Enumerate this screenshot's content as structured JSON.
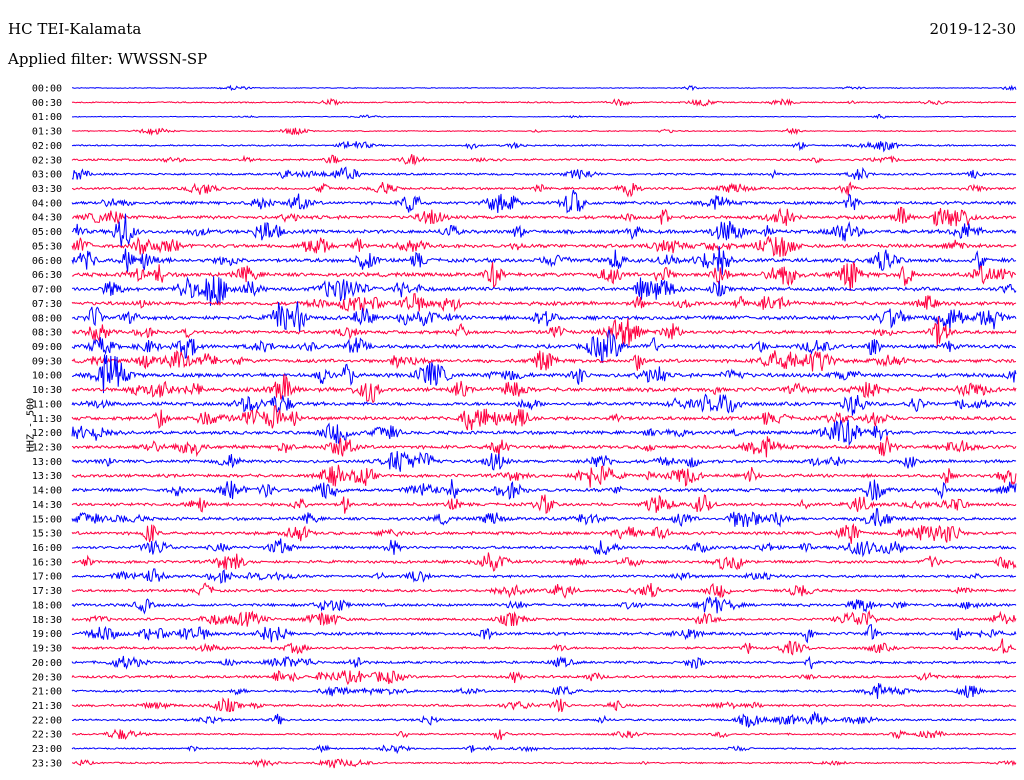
{
  "header": {
    "station": "HC TEI-Kalamata",
    "date": "2019-12-30",
    "filter": "Applied filter: WWSSN-SP"
  },
  "chart_data": {
    "type": "line",
    "ylabel": "HHZ - 500",
    "row_labels": [
      "00:00",
      "00:30",
      "01:00",
      "01:30",
      "02:00",
      "02:30",
      "03:00",
      "03:30",
      "04:00",
      "04:30",
      "05:00",
      "05:30",
      "06:00",
      "06:30",
      "07:00",
      "07:30",
      "08:00",
      "08:30",
      "09:00",
      "09:30",
      "10:00",
      "10:30",
      "11:00",
      "11:30",
      "12:00",
      "12:30",
      "13:00",
      "13:30",
      "14:00",
      "14:30",
      "15:00",
      "15:30",
      "16:00",
      "16:30",
      "17:00",
      "17:30",
      "18:00",
      "18:30",
      "19:00",
      "19:30",
      "20:00",
      "20:30",
      "21:00",
      "21:30",
      "22:00",
      "22:30",
      "23:00",
      "23:30"
    ],
    "amplitude_level": [
      0.3,
      0.5,
      0.3,
      0.4,
      0.6,
      0.8,
      0.8,
      0.9,
      1.2,
      1.3,
      1.4,
      1.4,
      1.5,
      1.5,
      1.4,
      1.4,
      1.5,
      1.3,
      1.4,
      1.4,
      1.5,
      1.5,
      1.4,
      1.4,
      1.3,
      1.3,
      1.2,
      1.2,
      1.3,
      1.2,
      1.2,
      1.2,
      1.1,
      1.1,
      1.0,
      1.0,
      1.1,
      1.0,
      1.1,
      0.9,
      1.0,
      1.0,
      0.9,
      0.9,
      0.8,
      0.7,
      0.6,
      0.6
    ],
    "colors": [
      "#0000ff",
      "#ff0040"
    ],
    "grid": false,
    "legend": "none"
  }
}
